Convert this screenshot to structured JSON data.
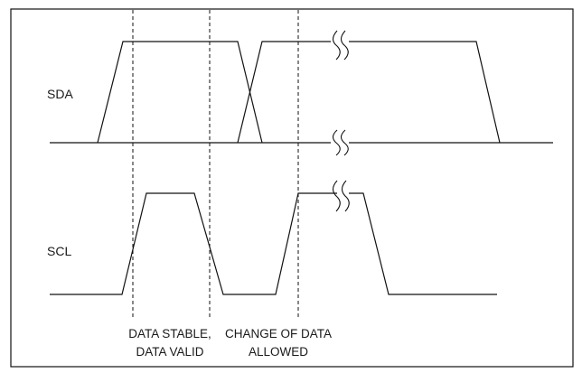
{
  "signals": {
    "sda": "SDA",
    "scl": "SCL"
  },
  "captions": {
    "stable_line1": "DATA STABLE,",
    "stable_line2": "DATA VALID",
    "change_line1": "CHANGE OF DATA",
    "change_line2": "ALLOWED"
  }
}
